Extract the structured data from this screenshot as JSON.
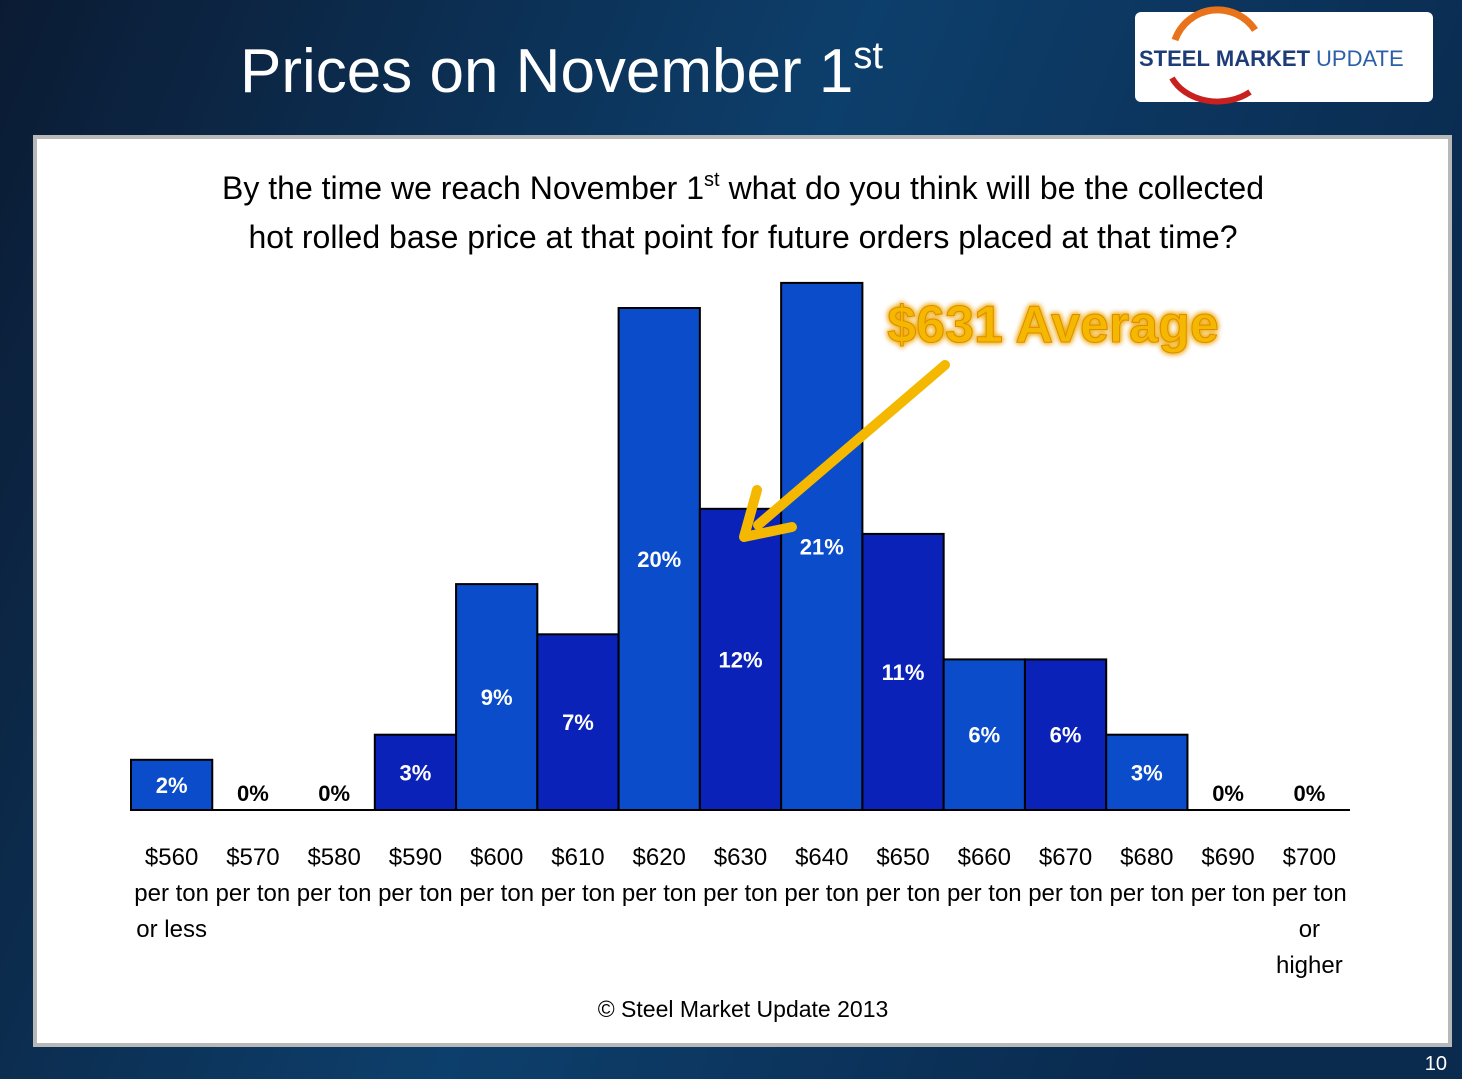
{
  "title": [
    "Prices on November 1",
    "st"
  ],
  "logo": [
    "STEEL",
    "MARKET",
    "UPDATE"
  ],
  "page_number": "10",
  "chart_data": {
    "type": "bar",
    "subtitle": [
      "By the time we reach November 1",
      "st",
      "what do you think will be the collected",
      "hot rolled base price at that point for future orders placed at that time?"
    ],
    "categories": [
      "$560 per ton or less",
      "$570 per ton",
      "$580 per ton",
      "$590 per ton",
      "$600 per ton",
      "$610 per ton",
      "$620 per ton",
      "$630 per ton",
      "$640 per ton",
      "$650 per ton",
      "$660 per ton",
      "$670 per ton",
      "$680 per ton",
      "$690 per ton",
      "$700 per ton or higher"
    ],
    "values": [
      2,
      0,
      0,
      3,
      9,
      7,
      20,
      12,
      21,
      11,
      6,
      6,
      3,
      0,
      0
    ],
    "value_labels": [
      "2%",
      "0%",
      "0%",
      "3%",
      "9%",
      "7%",
      "20%",
      "12%",
      "21%",
      "11%",
      "6%",
      "6%",
      "3%",
      "0%",
      "0%"
    ],
    "colors": [
      "#0a4cc9",
      "#0a22b8",
      "#0a4cc9",
      "#0a22b8",
      "#0a4cc9",
      "#0a22b8",
      "#0a4cc9",
      "#0a22b8",
      "#0a4cc9",
      "#0a22b8",
      "#0a4cc9",
      "#0a22b8",
      "#0a4cc9",
      "#0a22b8",
      "#0a4cc9"
    ],
    "annotation": "$631 Average",
    "footer": "© Steel Market Update 2013"
  }
}
